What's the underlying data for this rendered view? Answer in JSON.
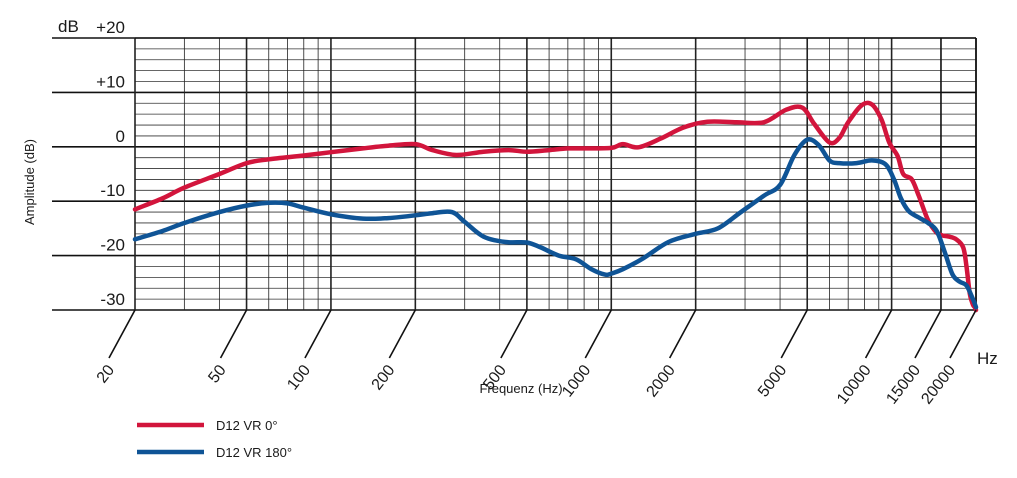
{
  "chart_data": {
    "type": "line",
    "title": "",
    "xlabel": "Frequenz (Hz)",
    "ylabel": "Amplitude (dB)",
    "x_unit": "Hz",
    "y_unit": "dB",
    "x_scale": "log",
    "xlim": [
      20,
      20000
    ],
    "ylim": [
      -30,
      20
    ],
    "y_ticks": [
      20,
      10,
      0,
      -10,
      -20,
      -30
    ],
    "y_tick_labels": [
      "+20",
      "+10",
      "0",
      "-10",
      "-20",
      "-30"
    ],
    "x_ticks": [
      20,
      50,
      100,
      200,
      500,
      1000,
      2000,
      5000,
      10000,
      15000,
      20000
    ],
    "x_tick_labels": [
      "20",
      "50",
      "100",
      "200",
      "500",
      "1000",
      "2000",
      "5000",
      "10000",
      "15000",
      "20000"
    ],
    "grid": true,
    "legend_position": "bottom-left",
    "series": [
      {
        "name": "D12 VR 0°",
        "color": "#d2153c",
        "x": [
          20,
          25,
          30,
          40,
          50,
          60,
          80,
          100,
          130,
          160,
          200,
          230,
          280,
          350,
          430,
          500,
          600,
          700,
          800,
          1000,
          1100,
          1250,
          1500,
          1800,
          2200,
          2800,
          3500,
          4200,
          4800,
          5300,
          6000,
          6500,
          7000,
          7800,
          8500,
          9200,
          9800,
          10500,
          11000,
          11800,
          12500,
          13500,
          14500,
          15200,
          16000,
          17000,
          18000,
          18500,
          19000,
          19500,
          19800,
          20000
        ],
        "values": [
          -11.5,
          -9.5,
          -7.5,
          -5,
          -3,
          -2.3,
          -1.6,
          -1,
          -0.3,
          0.2,
          0.5,
          -0.6,
          -1.5,
          -0.9,
          -0.6,
          -0.9,
          -0.6,
          -0.3,
          -0.3,
          -0.2,
          0.5,
          -0.1,
          1.5,
          3.5,
          4.6,
          4.5,
          4.5,
          6.8,
          7.2,
          4.2,
          0.8,
          1.6,
          4.5,
          7.6,
          7.8,
          5,
          0.8,
          -1.7,
          -5,
          -6,
          -9,
          -13.5,
          -15.8,
          -16.3,
          -16.5,
          -17,
          -18.5,
          -22,
          -27,
          -29,
          -29.5,
          -30
        ]
      },
      {
        "name": "D12 VR 180°",
        "color": "#0f5496",
        "x": [
          20,
          25,
          30,
          40,
          50,
          60,
          70,
          80,
          100,
          130,
          160,
          200,
          230,
          270,
          300,
          350,
          420,
          500,
          560,
          650,
          750,
          850,
          950,
          1000,
          1100,
          1300,
          1600,
          2000,
          2400,
          2900,
          3500,
          4000,
          4500,
          5000,
          5500,
          6000,
          6500,
          7500,
          8500,
          9500,
          10200,
          10800,
          11500,
          12500,
          13500,
          14500,
          15500,
          16500,
          17500,
          18500,
          19500,
          20000
        ],
        "values": [
          -17,
          -15.5,
          -14,
          -12,
          -10.8,
          -10.3,
          -10.4,
          -11.2,
          -12.4,
          -13.2,
          -13.1,
          -12.6,
          -12.2,
          -12,
          -13.8,
          -16.5,
          -17.5,
          -17.6,
          -18.5,
          -20,
          -20.7,
          -22.5,
          -23.5,
          -23.3,
          -22.5,
          -20.5,
          -17.5,
          -16,
          -15,
          -12,
          -9,
          -7,
          -1.5,
          1.3,
          0.3,
          -2.5,
          -3,
          -3,
          -2.5,
          -3.2,
          -6,
          -9.5,
          -11.8,
          -13,
          -14,
          -15.5,
          -19.5,
          -23.5,
          -24.8,
          -25.5,
          -28,
          -29.5
        ]
      }
    ]
  }
}
